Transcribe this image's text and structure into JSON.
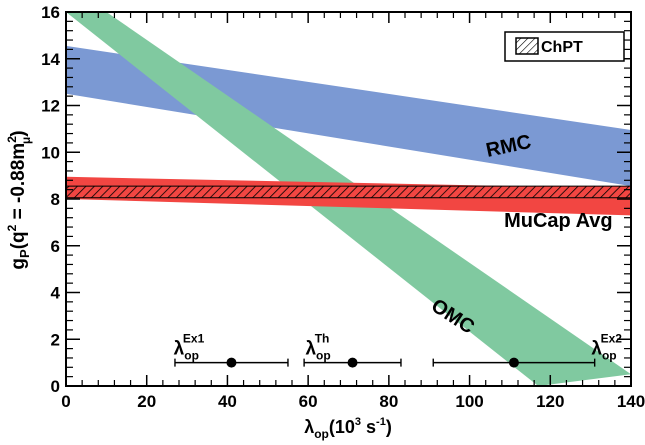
{
  "chart_data": {
    "type": "area",
    "x_axis": {
      "label_main": "λ",
      "label_sub": "op",
      "label_tail": "(10",
      "label_sup": "3",
      "label_end": " s",
      "label_sup2": "-1",
      "label_close": ")",
      "range": [
        0,
        140
      ],
      "ticks": [
        "0",
        "20",
        "40",
        "60",
        "80",
        "100",
        "120",
        "140"
      ]
    },
    "y_axis": {
      "label_main": "g",
      "label_sub": "P",
      "label_tail": "(q",
      "label_sup": "2",
      "label_mid": " = -0.88m",
      "label_sup2": "2",
      "label_sub2": "μ",
      "label_close": ")",
      "range": [
        0,
        16
      ],
      "ticks": [
        "0",
        "2",
        "4",
        "6",
        "8",
        "10",
        "12",
        "14",
        "16"
      ]
    },
    "grid": false,
    "legend": {
      "position": "top-right",
      "entry": "ChPT"
    },
    "bands": [
      {
        "name": "RMC",
        "color": "#7b99d3",
        "upper": [
          [
            0,
            14.55
          ],
          [
            140,
            10.95
          ]
        ],
        "lower": [
          [
            0,
            12.5
          ],
          [
            140,
            8.55
          ]
        ]
      },
      {
        "name": "OMC",
        "color": "#80c9a0",
        "upper": [
          [
            10,
            16
          ],
          [
            140,
            0.5
          ]
        ],
        "lower": [
          [
            0,
            16
          ],
          [
            117,
            0
          ]
        ]
      },
      {
        "name": "MuCap Avg",
        "color": "#f24642",
        "upper": [
          [
            0,
            8.95
          ],
          [
            140,
            8.45
          ]
        ],
        "lower": [
          [
            0,
            8.0
          ],
          [
            140,
            7.3
          ]
        ]
      },
      {
        "name": "ChPT",
        "hatched": true,
        "upper": [
          [
            0,
            8.55
          ],
          [
            140,
            8.55
          ]
        ],
        "lower": [
          [
            0,
            8.05
          ],
          [
            140,
            8.05
          ]
        ]
      }
    ],
    "band_labels": [
      {
        "text": "RMC",
        "x": 110,
        "y": 10.0,
        "rotate": -12
      },
      {
        "text": "MuCap Avg",
        "x": 122,
        "y": 6.8,
        "rotate": 0
      },
      {
        "text": "OMC",
        "x": 95,
        "y": 2.75,
        "rotate": 33
      }
    ],
    "points": [
      {
        "label_main": "λ",
        "label_sub": "op",
        "label_sup": "Ex1",
        "x": 41,
        "y": 1.0,
        "xerr": [
          27,
          55
        ]
      },
      {
        "label_main": "λ",
        "label_sub": "op",
        "label_sup": "Th",
        "x": 71,
        "y": 1.0,
        "xerr": [
          59,
          83
        ]
      },
      {
        "label_main": "λ",
        "label_sub": "op",
        "label_sup": "Ex2",
        "x": 111,
        "y": 1.0,
        "xerr": [
          91,
          131
        ]
      }
    ]
  }
}
